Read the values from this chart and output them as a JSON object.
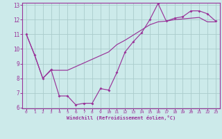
{
  "xlabel": "Windchill (Refroidissement éolien,°C)",
  "line1_x": [
    0,
    1,
    2,
    3,
    4,
    5,
    6,
    7,
    8,
    9,
    10,
    11,
    12,
    13,
    14,
    15,
    16,
    17,
    18,
    19,
    20,
    21,
    22,
    23
  ],
  "line1_y": [
    11.0,
    9.6,
    8.0,
    8.6,
    6.8,
    6.8,
    6.2,
    6.3,
    6.3,
    7.3,
    7.2,
    8.4,
    9.8,
    10.5,
    11.1,
    12.0,
    13.1,
    11.9,
    12.1,
    12.2,
    12.6,
    12.6,
    12.4,
    11.9
  ],
  "line2_x": [
    0,
    1,
    2,
    3,
    4,
    5,
    6,
    7,
    8,
    9,
    10,
    11,
    12,
    13,
    14,
    15,
    16,
    17,
    18,
    19,
    20,
    21,
    22,
    23
  ],
  "line2_y": [
    11.0,
    9.6,
    8.0,
    8.55,
    8.55,
    8.55,
    8.8,
    9.05,
    9.3,
    9.55,
    9.8,
    10.3,
    10.6,
    10.95,
    11.3,
    11.65,
    11.85,
    11.9,
    12.0,
    12.05,
    12.1,
    12.15,
    11.85,
    11.85
  ],
  "color": "#993399",
  "bg_color": "#cceaea",
  "grid_color": "#aacccc",
  "ylim_min": 6,
  "ylim_max": 13,
  "xlim_min": -0.5,
  "xlim_max": 23.5,
  "yticks": [
    6,
    7,
    8,
    9,
    10,
    11,
    12,
    13
  ],
  "xticks": [
    0,
    1,
    2,
    3,
    4,
    5,
    6,
    7,
    8,
    9,
    10,
    11,
    12,
    13,
    14,
    15,
    16,
    17,
    18,
    19,
    20,
    21,
    22,
    23
  ]
}
